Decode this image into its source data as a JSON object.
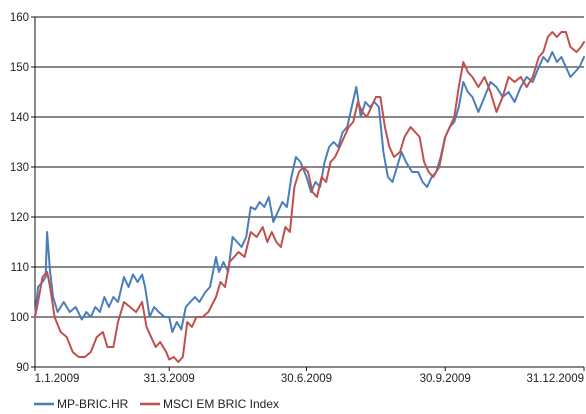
{
  "chart_data": {
    "type": "line",
    "title": "",
    "xlabel": "",
    "ylabel": "",
    "ylim": [
      90,
      160
    ],
    "xlim": [
      "2009-01-01",
      "2009-12-31"
    ],
    "yticks": [
      90,
      100,
      110,
      120,
      130,
      140,
      150,
      160
    ],
    "xticks": [
      {
        "label": "1.1.2009",
        "date": "2009-01-01"
      },
      {
        "label": "31.3.2009",
        "date": "2009-03-31"
      },
      {
        "label": "30.6.2009",
        "date": "2009-06-30"
      },
      {
        "label": "30.9.2009",
        "date": "2009-09-30"
      },
      {
        "label": "31.12.2009",
        "date": "2009-12-31"
      }
    ],
    "grid": "horizontal",
    "legend_position": "bottom",
    "series": [
      {
        "name": "MP-BRIC.HR",
        "color": "#4a7ebb",
        "points": [
          [
            "2009-01-01",
            100
          ],
          [
            "2009-01-03",
            106
          ],
          [
            "2009-01-06",
            107
          ],
          [
            "2009-01-08",
            108
          ],
          [
            "2009-01-09",
            117
          ],
          [
            "2009-01-11",
            109
          ],
          [
            "2009-01-13",
            104
          ],
          [
            "2009-01-16",
            101
          ],
          [
            "2009-01-20",
            103
          ],
          [
            "2009-01-24",
            101
          ],
          [
            "2009-01-28",
            102
          ],
          [
            "2009-02-01",
            99.5
          ],
          [
            "2009-02-04",
            101
          ],
          [
            "2009-02-07",
            100
          ],
          [
            "2009-02-10",
            102
          ],
          [
            "2009-02-13",
            101
          ],
          [
            "2009-02-16",
            104
          ],
          [
            "2009-02-19",
            102
          ],
          [
            "2009-02-22",
            104
          ],
          [
            "2009-02-25",
            103
          ],
          [
            "2009-03-01",
            108
          ],
          [
            "2009-03-04",
            106
          ],
          [
            "2009-03-07",
            108.5
          ],
          [
            "2009-03-10",
            107
          ],
          [
            "2009-03-13",
            108.5
          ],
          [
            "2009-03-15",
            106
          ],
          [
            "2009-03-18",
            100
          ],
          [
            "2009-03-21",
            102
          ],
          [
            "2009-03-24",
            101
          ],
          [
            "2009-03-28",
            100
          ],
          [
            "2009-03-31",
            100
          ],
          [
            "2009-04-02",
            97
          ],
          [
            "2009-04-05",
            99
          ],
          [
            "2009-04-08",
            97.5
          ],
          [
            "2009-04-11",
            102
          ],
          [
            "2009-04-14",
            103
          ],
          [
            "2009-04-17",
            104
          ],
          [
            "2009-04-20",
            103
          ],
          [
            "2009-04-24",
            105
          ],
          [
            "2009-04-27",
            106
          ],
          [
            "2009-05-01",
            112
          ],
          [
            "2009-05-03",
            109
          ],
          [
            "2009-05-06",
            111
          ],
          [
            "2009-05-09",
            109
          ],
          [
            "2009-05-12",
            116
          ],
          [
            "2009-05-15",
            115
          ],
          [
            "2009-05-18",
            114
          ],
          [
            "2009-05-21",
            116
          ],
          [
            "2009-05-24",
            122
          ],
          [
            "2009-05-27",
            121.5
          ],
          [
            "2009-05-30",
            123
          ],
          [
            "2009-06-02",
            122
          ],
          [
            "2009-06-05",
            124
          ],
          [
            "2009-06-08",
            119
          ],
          [
            "2009-06-11",
            121
          ],
          [
            "2009-06-14",
            123
          ],
          [
            "2009-06-17",
            122
          ],
          [
            "2009-06-20",
            128
          ],
          [
            "2009-06-23",
            132
          ],
          [
            "2009-06-26",
            131
          ],
          [
            "2009-06-30",
            128
          ],
          [
            "2009-07-03",
            125
          ],
          [
            "2009-07-06",
            127
          ],
          [
            "2009-07-09",
            126
          ],
          [
            "2009-07-12",
            131
          ],
          [
            "2009-07-15",
            134
          ],
          [
            "2009-07-18",
            135
          ],
          [
            "2009-07-21",
            134
          ],
          [
            "2009-07-24",
            137
          ],
          [
            "2009-07-27",
            138
          ],
          [
            "2009-07-30",
            142
          ],
          [
            "2009-08-02",
            146
          ],
          [
            "2009-08-05",
            140
          ],
          [
            "2009-08-08",
            143
          ],
          [
            "2009-08-11",
            142
          ],
          [
            "2009-08-14",
            143
          ],
          [
            "2009-08-17",
            142
          ],
          [
            "2009-08-20",
            133
          ],
          [
            "2009-08-23",
            128
          ],
          [
            "2009-08-26",
            127
          ],
          [
            "2009-08-29",
            130
          ],
          [
            "2009-09-01",
            133
          ],
          [
            "2009-09-04",
            131
          ],
          [
            "2009-09-08",
            129
          ],
          [
            "2009-09-12",
            129
          ],
          [
            "2009-09-15",
            127
          ],
          [
            "2009-09-18",
            126
          ],
          [
            "2009-09-21",
            128
          ],
          [
            "2009-09-24",
            129
          ],
          [
            "2009-09-27",
            132
          ],
          [
            "2009-09-30",
            136
          ],
          [
            "2009-10-03",
            138
          ],
          [
            "2009-10-06",
            139
          ],
          [
            "2009-10-09",
            142
          ],
          [
            "2009-10-12",
            147
          ],
          [
            "2009-10-15",
            145
          ],
          [
            "2009-10-18",
            144
          ],
          [
            "2009-10-22",
            141
          ],
          [
            "2009-10-26",
            144
          ],
          [
            "2009-10-30",
            147
          ],
          [
            "2009-11-03",
            146
          ],
          [
            "2009-11-07",
            144
          ],
          [
            "2009-11-11",
            145
          ],
          [
            "2009-11-15",
            143
          ],
          [
            "2009-11-19",
            146
          ],
          [
            "2009-11-23",
            148
          ],
          [
            "2009-11-27",
            147
          ],
          [
            "2009-12-01",
            150
          ],
          [
            "2009-12-04",
            152
          ],
          [
            "2009-12-07",
            151
          ],
          [
            "2009-12-10",
            153
          ],
          [
            "2009-12-13",
            151
          ],
          [
            "2009-12-16",
            152
          ],
          [
            "2009-12-19",
            150
          ],
          [
            "2009-12-22",
            148
          ],
          [
            "2009-12-25",
            149
          ],
          [
            "2009-12-28",
            150
          ],
          [
            "2009-12-31",
            152
          ]
        ]
      },
      {
        "name": "MSCI EM BRIC Index",
        "color": "#c0504d",
        "points": [
          [
            "2009-01-01",
            100
          ],
          [
            "2009-01-03",
            103
          ],
          [
            "2009-01-06",
            108
          ],
          [
            "2009-01-09",
            109
          ],
          [
            "2009-01-11",
            106
          ],
          [
            "2009-01-14",
            100
          ],
          [
            "2009-01-18",
            97
          ],
          [
            "2009-01-22",
            96
          ],
          [
            "2009-01-26",
            93
          ],
          [
            "2009-01-30",
            92
          ],
          [
            "2009-02-03",
            92
          ],
          [
            "2009-02-07",
            93
          ],
          [
            "2009-02-11",
            96
          ],
          [
            "2009-02-15",
            97
          ],
          [
            "2009-02-18",
            94
          ],
          [
            "2009-02-22",
            94
          ],
          [
            "2009-02-25",
            99
          ],
          [
            "2009-03-01",
            103
          ],
          [
            "2009-03-05",
            102
          ],
          [
            "2009-03-09",
            101
          ],
          [
            "2009-03-13",
            103
          ],
          [
            "2009-03-16",
            98
          ],
          [
            "2009-03-19",
            96
          ],
          [
            "2009-03-22",
            94
          ],
          [
            "2009-03-25",
            95
          ],
          [
            "2009-03-29",
            93
          ],
          [
            "2009-03-31",
            91.5
          ],
          [
            "2009-04-03",
            92
          ],
          [
            "2009-04-06",
            91
          ],
          [
            "2009-04-09",
            92
          ],
          [
            "2009-04-12",
            99
          ],
          [
            "2009-04-15",
            98
          ],
          [
            "2009-04-18",
            100
          ],
          [
            "2009-04-22",
            100
          ],
          [
            "2009-04-26",
            101
          ],
          [
            "2009-05-01",
            104
          ],
          [
            "2009-05-04",
            107
          ],
          [
            "2009-05-07",
            106
          ],
          [
            "2009-05-10",
            111
          ],
          [
            "2009-05-13",
            112
          ],
          [
            "2009-05-16",
            113
          ],
          [
            "2009-05-20",
            112
          ],
          [
            "2009-05-24",
            117
          ],
          [
            "2009-05-28",
            116
          ],
          [
            "2009-06-01",
            118
          ],
          [
            "2009-06-04",
            115
          ],
          [
            "2009-06-07",
            117
          ],
          [
            "2009-06-10",
            115
          ],
          [
            "2009-06-13",
            114
          ],
          [
            "2009-06-16",
            118
          ],
          [
            "2009-06-19",
            117
          ],
          [
            "2009-06-22",
            126
          ],
          [
            "2009-06-25",
            129
          ],
          [
            "2009-06-28",
            130
          ],
          [
            "2009-07-01",
            129
          ],
          [
            "2009-07-04",
            125
          ],
          [
            "2009-07-07",
            124
          ],
          [
            "2009-07-10",
            128
          ],
          [
            "2009-07-13",
            127
          ],
          [
            "2009-07-16",
            131
          ],
          [
            "2009-07-19",
            132
          ],
          [
            "2009-07-22",
            134
          ],
          [
            "2009-07-25",
            136
          ],
          [
            "2009-07-28",
            138
          ],
          [
            "2009-07-31",
            139
          ],
          [
            "2009-08-03",
            143
          ],
          [
            "2009-08-06",
            141
          ],
          [
            "2009-08-09",
            140
          ],
          [
            "2009-08-12",
            142
          ],
          [
            "2009-08-15",
            144
          ],
          [
            "2009-08-18",
            144
          ],
          [
            "2009-08-21",
            138
          ],
          [
            "2009-08-24",
            134
          ],
          [
            "2009-08-27",
            132
          ],
          [
            "2009-08-31",
            133
          ],
          [
            "2009-09-03",
            136
          ],
          [
            "2009-09-07",
            138
          ],
          [
            "2009-09-10",
            137
          ],
          [
            "2009-09-13",
            136
          ],
          [
            "2009-09-16",
            131
          ],
          [
            "2009-09-19",
            129
          ],
          [
            "2009-09-22",
            128
          ],
          [
            "2009-09-26",
            130
          ],
          [
            "2009-09-30",
            136
          ],
          [
            "2009-10-03",
            138
          ],
          [
            "2009-10-06",
            140
          ],
          [
            "2009-10-09",
            146
          ],
          [
            "2009-10-12",
            151
          ],
          [
            "2009-10-15",
            149
          ],
          [
            "2009-10-18",
            148
          ],
          [
            "2009-10-22",
            146
          ],
          [
            "2009-10-26",
            148
          ],
          [
            "2009-10-30",
            145
          ],
          [
            "2009-11-03",
            141
          ],
          [
            "2009-11-07",
            144
          ],
          [
            "2009-11-11",
            148
          ],
          [
            "2009-11-15",
            147
          ],
          [
            "2009-11-19",
            148
          ],
          [
            "2009-11-23",
            146
          ],
          [
            "2009-11-27",
            148
          ],
          [
            "2009-12-01",
            152
          ],
          [
            "2009-12-04",
            153
          ],
          [
            "2009-12-07",
            156
          ],
          [
            "2009-12-10",
            157
          ],
          [
            "2009-12-13",
            156
          ],
          [
            "2009-12-16",
            157
          ],
          [
            "2009-12-19",
            157
          ],
          [
            "2009-12-22",
            154
          ],
          [
            "2009-12-26",
            153
          ],
          [
            "2009-12-29",
            154
          ],
          [
            "2009-12-31",
            155
          ]
        ]
      }
    ]
  }
}
